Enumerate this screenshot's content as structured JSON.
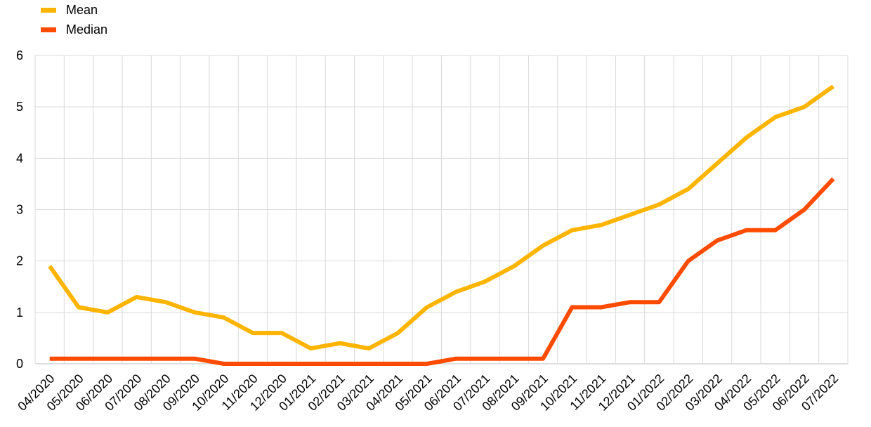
{
  "chart_data": {
    "type": "line",
    "title": "",
    "xlabel": "",
    "ylabel": "",
    "ylim": [
      0,
      6
    ],
    "yticks": [
      "0",
      "1",
      "2",
      "3",
      "4",
      "5",
      "6"
    ],
    "grid": true,
    "legend_position": "top-left",
    "categories": [
      "04/2020",
      "05/2020",
      "06/2020",
      "07/2020",
      "08/2020",
      "09/2020",
      "10/2020",
      "11/2020",
      "12/2020",
      "01/2021",
      "02/2021",
      "03/2021",
      "04/2021",
      "05/2021",
      "06/2021",
      "07/2021",
      "08/2021",
      "09/2021",
      "10/2021",
      "11/2021",
      "12/2021",
      "01/2022",
      "02/2022",
      "03/2022",
      "04/2022",
      "05/2022",
      "06/2022",
      "07/2022"
    ],
    "series": [
      {
        "name": "Mean",
        "color": "#FFB400",
        "values": [
          1.9,
          1.1,
          1.0,
          1.3,
          1.2,
          1.0,
          0.9,
          0.6,
          0.6,
          0.3,
          0.4,
          0.3,
          0.6,
          1.1,
          1.4,
          1.6,
          1.9,
          2.3,
          2.6,
          2.7,
          2.9,
          3.1,
          3.4,
          3.9,
          4.4,
          4.8,
          5.0,
          5.4
        ]
      },
      {
        "name": "Median",
        "color": "#FF4B00",
        "values": [
          0.1,
          0.1,
          0.1,
          0.1,
          0.1,
          0.1,
          0.0,
          0.0,
          0.0,
          0.0,
          0.0,
          0.0,
          0.0,
          0.0,
          0.1,
          0.1,
          0.1,
          0.1,
          1.1,
          1.1,
          1.2,
          1.2,
          2.0,
          2.4,
          2.6,
          2.6,
          3.0,
          3.6
        ]
      }
    ]
  }
}
